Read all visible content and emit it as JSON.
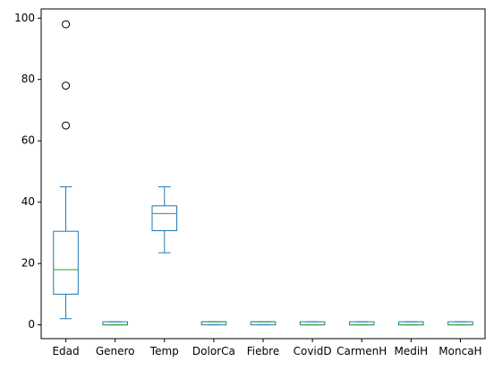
{
  "chart_data": {
    "type": "box",
    "title": "",
    "xlabel": "",
    "ylabel": "",
    "ylim": [
      -4.5,
      103
    ],
    "yticks": [
      0,
      20,
      40,
      60,
      80,
      100
    ],
    "ytick_labels": [
      "0",
      "20",
      "40",
      "60",
      "80",
      "100"
    ],
    "grid": false,
    "legend": "none",
    "categories": [
      "Edad",
      "Genero",
      "Temp",
      "DolorCa",
      "Fiebre",
      "CovidD",
      "CarmenH",
      "MediH",
      "MoncaH"
    ],
    "boxes": [
      {
        "q1": 10,
        "median": 18,
        "q3": 30.5,
        "whisker_low": 2,
        "whisker_high": 45,
        "fliers": [
          65,
          78,
          98
        ]
      },
      {
        "q1": 0,
        "median": 0,
        "q3": 1,
        "whisker_low": 0,
        "whisker_high": 1,
        "fliers": []
      },
      {
        "q1": 30.7,
        "median": 36.3,
        "q3": 38.8,
        "whisker_low": 23.5,
        "whisker_high": 45,
        "fliers": []
      },
      {
        "q1": 0,
        "median": 1,
        "q3": 1,
        "whisker_low": 0,
        "whisker_high": 1,
        "fliers": []
      },
      {
        "q1": 0,
        "median": 1,
        "q3": 1,
        "whisker_low": 0,
        "whisker_high": 1,
        "fliers": []
      },
      {
        "q1": 0,
        "median": 0,
        "q3": 1,
        "whisker_low": 0,
        "whisker_high": 1,
        "fliers": []
      },
      {
        "q1": 0,
        "median": 0,
        "q3": 1,
        "whisker_low": 0,
        "whisker_high": 1,
        "fliers": []
      },
      {
        "q1": 0,
        "median": 0,
        "q3": 1,
        "whisker_low": 0,
        "whisker_high": 1,
        "fliers": []
      },
      {
        "q1": 0,
        "median": 0,
        "q3": 1,
        "whisker_low": 0,
        "whisker_high": 1,
        "fliers": []
      }
    ],
    "colors": {
      "box": "#1f77b4",
      "median": "#2ca02c",
      "flier": "#000000",
      "axes": "#000000"
    }
  }
}
